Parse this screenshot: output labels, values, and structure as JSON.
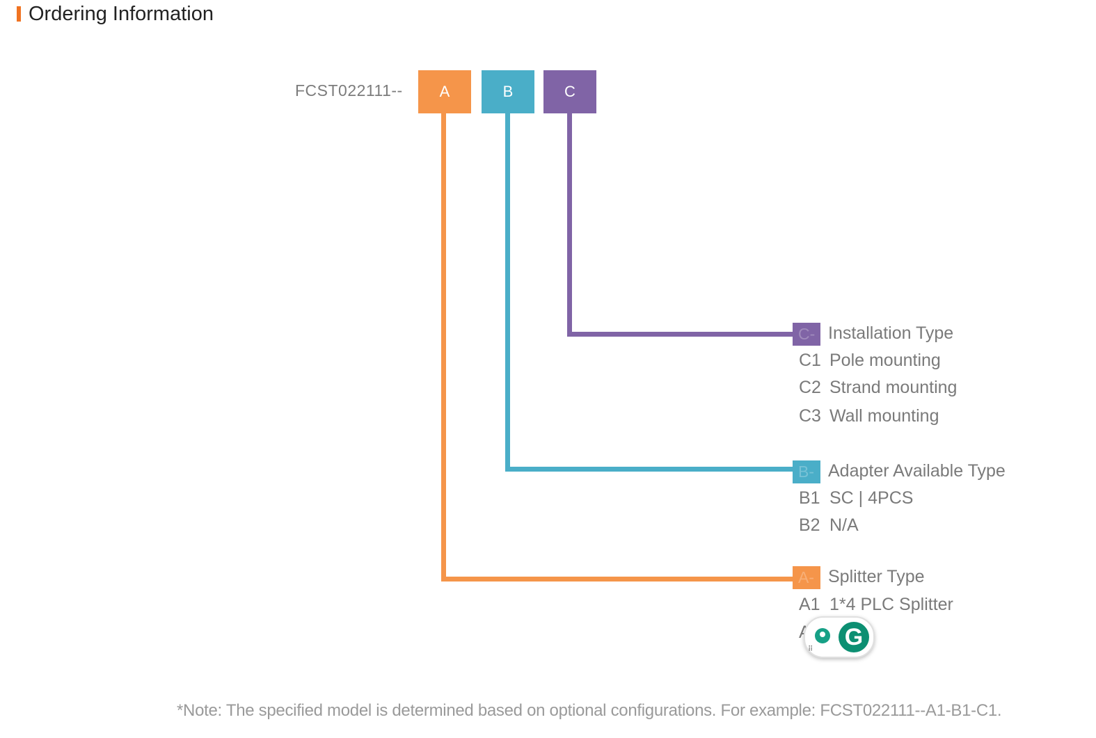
{
  "header": {
    "title": "Ordering Information"
  },
  "model": {
    "prefix": "FCST022111--",
    "codes": [
      "A",
      "B",
      "C"
    ]
  },
  "colors": {
    "accent": "#f07322",
    "a": "#f5954a",
    "b": "#4aaec8",
    "c": "#8064a6",
    "text": "#7a7a7a"
  },
  "groups": {
    "c": {
      "tag": "C-",
      "heading": "Installation Type",
      "options": [
        {
          "code": "C1",
          "label": "Pole mounting"
        },
        {
          "code": "C2",
          "label": "Strand mounting"
        },
        {
          "code": "C3",
          "label": "Wall mounting"
        }
      ]
    },
    "b": {
      "tag": "B-",
      "heading": "Adapter Available Type",
      "options": [
        {
          "code": "B1",
          "label": "SC | 4PCS"
        },
        {
          "code": "B2",
          "label": "N/A"
        }
      ]
    },
    "a": {
      "tag": "A-",
      "heading": "Splitter Type",
      "options": [
        {
          "code": "A1",
          "label": "1*4 PLC Splitter"
        },
        {
          "code": "A",
          "label": ""
        }
      ]
    }
  },
  "note": "*Note: The specified model is determined based on optional configurations. For example: FCST022111--A1-B1-C1.",
  "grammarly": {
    "icon": "grammarly-icon",
    "letter": "G"
  }
}
